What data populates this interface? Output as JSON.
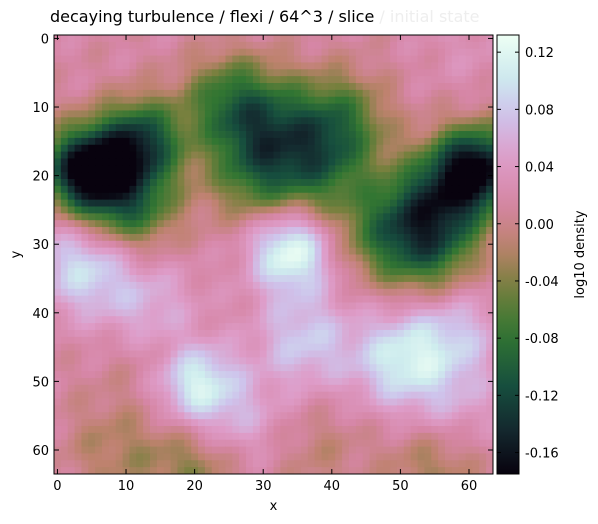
{
  "chart_data": {
    "type": "heatmap",
    "title": "decaying turbulence / flexi / 64^3 / slice",
    "title_faded": " / initial state",
    "xlabel": "x",
    "ylabel": "y",
    "colorbar_label": "log10 density",
    "colormap": "cubehelix-like (black → teal → green → brown → pink → lavender → white)",
    "xlim": [
      -0.5,
      63.5
    ],
    "ylim": [
      63.5,
      -0.5
    ],
    "x_ticks": [
      0,
      10,
      20,
      30,
      40,
      50,
      60
    ],
    "y_ticks": [
      0,
      10,
      20,
      30,
      40,
      50,
      60
    ],
    "colorbar_ticks": [
      "0.12",
      "0.08",
      "0.04",
      "0.00",
      "-0.04",
      "-0.08",
      "-0.12",
      "-0.16"
    ],
    "colorbar_tick_values": [
      0.12,
      0.08,
      0.04,
      0.0,
      -0.04,
      -0.08,
      -0.12,
      -0.16
    ],
    "clim": [
      -0.175,
      0.132
    ],
    "grid_resolution": 64,
    "features": [
      {
        "x": 4,
        "y": 19,
        "value": -0.17
      },
      {
        "x": 12,
        "y": 15,
        "value": -0.12
      },
      {
        "x": 10,
        "y": 24,
        "value": -0.1
      },
      {
        "x": 61,
        "y": 19,
        "value": -0.17
      },
      {
        "x": 55,
        "y": 24,
        "value": -0.09
      },
      {
        "x": 54,
        "y": 31,
        "value": -0.07
      },
      {
        "x": 25,
        "y": 9,
        "value": -0.07
      },
      {
        "x": 31,
        "y": 13,
        "value": -0.06
      },
      {
        "x": 41,
        "y": 12,
        "value": -0.07
      },
      {
        "x": 38,
        "y": 19,
        "value": -0.06
      },
      {
        "x": 29,
        "y": 20,
        "value": -0.06
      },
      {
        "x": 47,
        "y": 28,
        "value": -0.05
      },
      {
        "x": 22,
        "y": 1,
        "value": 0.02
      },
      {
        "x": 60,
        "y": 1,
        "value": 0.03
      },
      {
        "x": 34,
        "y": 31,
        "value": 0.13
      },
      {
        "x": 20,
        "y": 50,
        "value": 0.12
      },
      {
        "x": 4,
        "y": 33,
        "value": 0.1
      },
      {
        "x": 50,
        "y": 47,
        "value": 0.1
      },
      {
        "x": 36,
        "y": 44,
        "value": 0.08
      },
      {
        "x": 14,
        "y": 40,
        "value": 0.07
      },
      {
        "x": 58,
        "y": 43,
        "value": 0.07
      },
      {
        "x": 26,
        "y": 56,
        "value": 0.06
      },
      {
        "x": 58,
        "y": 54,
        "value": 0.05
      },
      {
        "x": 20,
        "y": 62,
        "value": -0.04
      },
      {
        "x": 8,
        "y": 60,
        "value": -0.02
      },
      {
        "x": 38,
        "y": 60,
        "value": -0.01
      },
      {
        "x": 55,
        "y": 62,
        "value": -0.03
      },
      {
        "x": 16,
        "y": 46,
        "value": -0.02
      },
      {
        "x": 8,
        "y": 48,
        "value": 0.01
      }
    ],
    "background_value": 0.015
  }
}
